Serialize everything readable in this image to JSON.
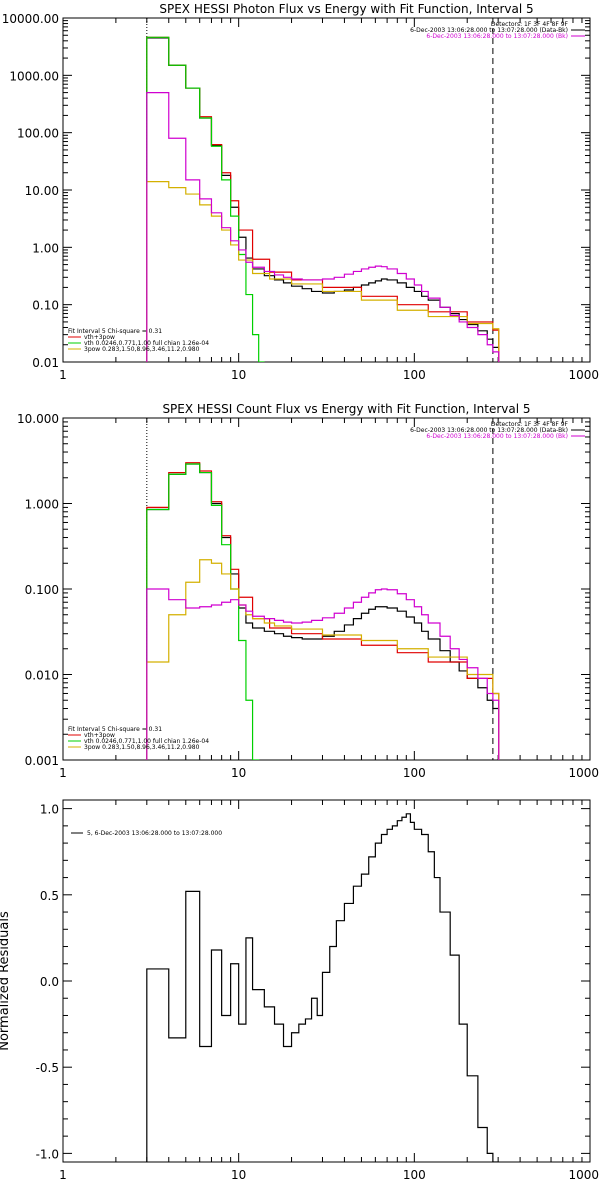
{
  "chart_data": [
    {
      "type": "line",
      "title": "SPEX HESSI Photon Flux vs Energy with Fit Function, Interval 5",
      "xlabel": "",
      "ylabel": "",
      "xscale": "log",
      "yscale": "log",
      "xlim": [
        1,
        1000
      ],
      "ylim": [
        0.01,
        10000
      ],
      "xticks": [
        "1",
        "10",
        "100",
        "1000"
      ],
      "yticks": [
        "0.01",
        "0.10",
        "1.00",
        "10.00",
        "100.00",
        "1000.00",
        "10000.00"
      ],
      "info_lines": [
        {
          "text": "Detectors: 1F 3F 4F 8F 9F",
          "color": "#000000"
        },
        {
          "text": "6-Dec-2003 13:06:28.000 to 13:07:28.000 (Data-Bk)",
          "color": "#000000"
        },
        {
          "text": "6-Dec-2003 13:06:28.000 to 13:07:28.000 (Bk)",
          "color": "#d000d0"
        }
      ],
      "fit_legend": [
        {
          "text": "Fit Interval 5   Chi-square = 0.31",
          "color": "#000000"
        },
        {
          "text": "vth+3pow",
          "color": "#e00000"
        },
        {
          "text": "vth 0.0246,0.771,1.00  full chian 1.26e-04",
          "color": "#00d000"
        },
        {
          "text": "3pow 0.283,1.50,8.96,3.46,11.2,0.980",
          "color": "#d4b000"
        }
      ],
      "energy_range_markers": [
        3,
        280
      ],
      "series": [
        {
          "name": "Data-Bk",
          "color": "#000000",
          "x": [
            3,
            4,
            5,
            6,
            7,
            8,
            9,
            10,
            11,
            12,
            14,
            16,
            18,
            20,
            23,
            26,
            30,
            35,
            40,
            45,
            50,
            55,
            60,
            65,
            70,
            80,
            90,
            100,
            110,
            120,
            140,
            160,
            180,
            200,
            230,
            260,
            280
          ],
          "y": [
            4500,
            1500,
            600,
            180,
            60,
            18,
            5,
            1.5,
            0.65,
            0.42,
            0.32,
            0.27,
            0.24,
            0.21,
            0.19,
            0.17,
            0.16,
            0.17,
            0.18,
            0.2,
            0.22,
            0.24,
            0.26,
            0.28,
            0.27,
            0.24,
            0.2,
            0.17,
            0.14,
            0.12,
            0.09,
            0.07,
            0.055,
            0.045,
            0.035,
            0.025,
            0.018
          ]
        },
        {
          "name": "vth+3pow",
          "color": "#e00000",
          "x": [
            3,
            4,
            5,
            6,
            7,
            8,
            9,
            10,
            12,
            15,
            20,
            30,
            50,
            80,
            120,
            200,
            280
          ],
          "y": [
            4600,
            1500,
            600,
            190,
            62,
            20,
            6.5,
            2,
            0.62,
            0.37,
            0.27,
            0.2,
            0.14,
            0.1,
            0.075,
            0.05,
            0.036
          ]
        },
        {
          "name": "vth",
          "color": "#00d000",
          "x": [
            3,
            4,
            5,
            6,
            7,
            8,
            9,
            10,
            11,
            12,
            13
          ],
          "y": [
            4600,
            1500,
            600,
            180,
            58,
            15,
            3.5,
            0.75,
            0.15,
            0.03,
            0.01
          ]
        },
        {
          "name": "3pow",
          "color": "#d4b000",
          "x": [
            3,
            4,
            5,
            6,
            7,
            8,
            9,
            10,
            12,
            15,
            20,
            30,
            50,
            80,
            120,
            200,
            280
          ],
          "y": [
            14,
            11,
            8.5,
            5.5,
            3.5,
            2,
            1.1,
            0.6,
            0.35,
            0.28,
            0.23,
            0.17,
            0.12,
            0.08,
            0.062,
            0.047,
            0.038
          ]
        },
        {
          "name": "Bk",
          "color": "#d000d0",
          "x": [
            3,
            4,
            5,
            6,
            7,
            8,
            9,
            10,
            11,
            12,
            14,
            16,
            18,
            20,
            23,
            26,
            30,
            35,
            40,
            45,
            50,
            55,
            60,
            65,
            70,
            80,
            90,
            100,
            110,
            120,
            140,
            160,
            180,
            200,
            230,
            260,
            280
          ],
          "y": [
            500,
            80,
            15,
            7,
            4,
            2.2,
            1.3,
            0.9,
            0.55,
            0.45,
            0.38,
            0.33,
            0.3,
            0.28,
            0.27,
            0.27,
            0.28,
            0.3,
            0.34,
            0.38,
            0.42,
            0.45,
            0.47,
            0.46,
            0.42,
            0.35,
            0.28,
            0.22,
            0.17,
            0.13,
            0.09,
            0.065,
            0.05,
            0.04,
            0.03,
            0.02,
            0.015
          ]
        }
      ]
    },
    {
      "type": "line",
      "title": "SPEX HESSI Count Flux vs Energy with Fit Function, Interval 5",
      "xlabel": "",
      "ylabel": "",
      "xscale": "log",
      "yscale": "log",
      "xlim": [
        1,
        1000
      ],
      "ylim": [
        0.001,
        10
      ],
      "xticks": [
        "1",
        "10",
        "100",
        "1000"
      ],
      "yticks": [
        "0.001",
        "0.010",
        "0.100",
        "1.000",
        "10.000"
      ],
      "info_lines": [
        {
          "text": "Detectors: 1F 3F 4F 8F 9F",
          "color": "#000000"
        },
        {
          "text": "6-Dec-2003 13:06:28.000 to 13:07:28.000 (Data-Bk)",
          "color": "#000000"
        },
        {
          "text": "6-Dec-2003 13:06:28.000 to 13:07:28.000 (Bk)",
          "color": "#d000d0"
        }
      ],
      "fit_legend": [
        {
          "text": "Fit Interval 5   Chi-square = 0.31",
          "color": "#000000"
        },
        {
          "text": "vth+3pow",
          "color": "#e00000"
        },
        {
          "text": "vth 0.0246,0.771,1.00  full chian 1.26e-04",
          "color": "#00d000"
        },
        {
          "text": "3pow 0.283,1.50,8.96,3.46,11.2,0.980",
          "color": "#d4b000"
        }
      ],
      "energy_range_markers": [
        3,
        280
      ],
      "series": [
        {
          "name": "Data-Bk",
          "color": "#000000",
          "x": [
            3,
            4,
            5,
            6,
            7,
            8,
            9,
            10,
            11,
            12,
            14,
            16,
            18,
            20,
            23,
            26,
            30,
            35,
            40,
            45,
            50,
            55,
            60,
            65,
            70,
            80,
            90,
            100,
            110,
            120,
            140,
            160,
            180,
            200,
            230,
            260,
            280
          ],
          "y": [
            0.85,
            2.2,
            2.9,
            2.3,
            1,
            0.4,
            0.15,
            0.06,
            0.04,
            0.035,
            0.032,
            0.03,
            0.028,
            0.027,
            0.026,
            0.026,
            0.028,
            0.032,
            0.038,
            0.045,
            0.052,
            0.058,
            0.062,
            0.062,
            0.06,
            0.055,
            0.047,
            0.04,
            0.032,
            0.026,
            0.019,
            0.014,
            0.011,
            0.009,
            0.007,
            0.005,
            0.004
          ]
        },
        {
          "name": "vth+3pow",
          "color": "#e00000",
          "x": [
            3,
            4,
            5,
            6,
            7,
            8,
            9,
            10,
            12,
            15,
            20,
            30,
            50,
            80,
            120,
            200,
            280
          ],
          "y": [
            0.9,
            2.3,
            3,
            2.4,
            1.05,
            0.42,
            0.17,
            0.08,
            0.045,
            0.035,
            0.03,
            0.026,
            0.022,
            0.018,
            0.014,
            0.009,
            0.006
          ]
        },
        {
          "name": "vth",
          "color": "#00d000",
          "x": [
            3,
            4,
            5,
            6,
            7,
            8,
            9,
            10,
            11,
            12,
            13
          ],
          "y": [
            0.85,
            2.2,
            2.9,
            2.3,
            0.95,
            0.33,
            0.1,
            0.025,
            0.005,
            0.001,
            0.0008
          ]
        },
        {
          "name": "3pow",
          "color": "#d4b000",
          "x": [
            3,
            4,
            5,
            6,
            7,
            8,
            9,
            10,
            11,
            12,
            14,
            16,
            20,
            30,
            50,
            80,
            120,
            200,
            280
          ],
          "y": [
            0.014,
            0.05,
            0.12,
            0.22,
            0.2,
            0.15,
            0.1,
            0.065,
            0.05,
            0.045,
            0.04,
            0.037,
            0.034,
            0.029,
            0.025,
            0.02,
            0.016,
            0.01,
            0.006
          ]
        },
        {
          "name": "Bk",
          "color": "#d000d0",
          "x": [
            3,
            4,
            5,
            6,
            7,
            8,
            9,
            10,
            11,
            12,
            14,
            16,
            18,
            20,
            23,
            26,
            30,
            35,
            40,
            45,
            50,
            55,
            60,
            65,
            70,
            80,
            90,
            100,
            110,
            120,
            140,
            160,
            180,
            200,
            230,
            260,
            280
          ],
          "y": [
            0.1,
            0.075,
            0.06,
            0.062,
            0.065,
            0.07,
            0.075,
            0.065,
            0.055,
            0.048,
            0.045,
            0.043,
            0.041,
            0.04,
            0.041,
            0.043,
            0.046,
            0.052,
            0.06,
            0.07,
            0.08,
            0.09,
            0.098,
            0.1,
            0.098,
            0.088,
            0.075,
            0.062,
            0.05,
            0.04,
            0.028,
            0.02,
            0.015,
            0.012,
            0.009,
            0.006,
            0.005
          ]
        }
      ]
    },
    {
      "type": "line",
      "title": "",
      "xlabel": "",
      "ylabel": "Normalized Residuals",
      "xscale": "log",
      "yscale": "linear",
      "xlim": [
        1,
        1000
      ],
      "ylim": [
        -1.05,
        1.05
      ],
      "xticks": [
        "1",
        "10",
        "100",
        "1000"
      ],
      "yticks": [
        "-1.0",
        "-0.5",
        "0.0",
        "0.5",
        "1.0"
      ],
      "legend": [
        {
          "text": "5, 6-Dec-2003 13:06:28.000 to 13:07:28.000",
          "color": "#000000"
        }
      ],
      "series": [
        {
          "name": "5, 6-Dec-2003 13:06:28.000 to 13:07:28.000",
          "color": "#000000",
          "x": [
            3,
            4,
            5,
            6,
            7,
            8,
            9,
            10,
            11,
            12,
            14,
            16,
            18,
            20,
            22,
            24,
            26,
            28,
            30,
            33,
            36,
            40,
            45,
            50,
            55,
            60,
            65,
            70,
            75,
            80,
            85,
            90,
            95,
            100,
            110,
            120,
            130,
            140,
            160,
            180,
            200,
            230,
            260,
            280
          ],
          "y": [
            0.07,
            -0.33,
            0.52,
            -0.38,
            0.18,
            -0.2,
            0.1,
            -0.25,
            0.25,
            -0.05,
            -0.15,
            -0.25,
            -0.38,
            -0.3,
            -0.25,
            -0.22,
            -0.1,
            -0.2,
            0.05,
            0.2,
            0.35,
            0.45,
            0.55,
            0.62,
            0.72,
            0.8,
            0.85,
            0.88,
            0.9,
            0.93,
            0.95,
            0.97,
            0.92,
            0.88,
            0.85,
            0.75,
            0.6,
            0.4,
            0.15,
            -0.25,
            -0.55,
            -0.85,
            -1.0,
            -1.05
          ]
        }
      ]
    }
  ]
}
